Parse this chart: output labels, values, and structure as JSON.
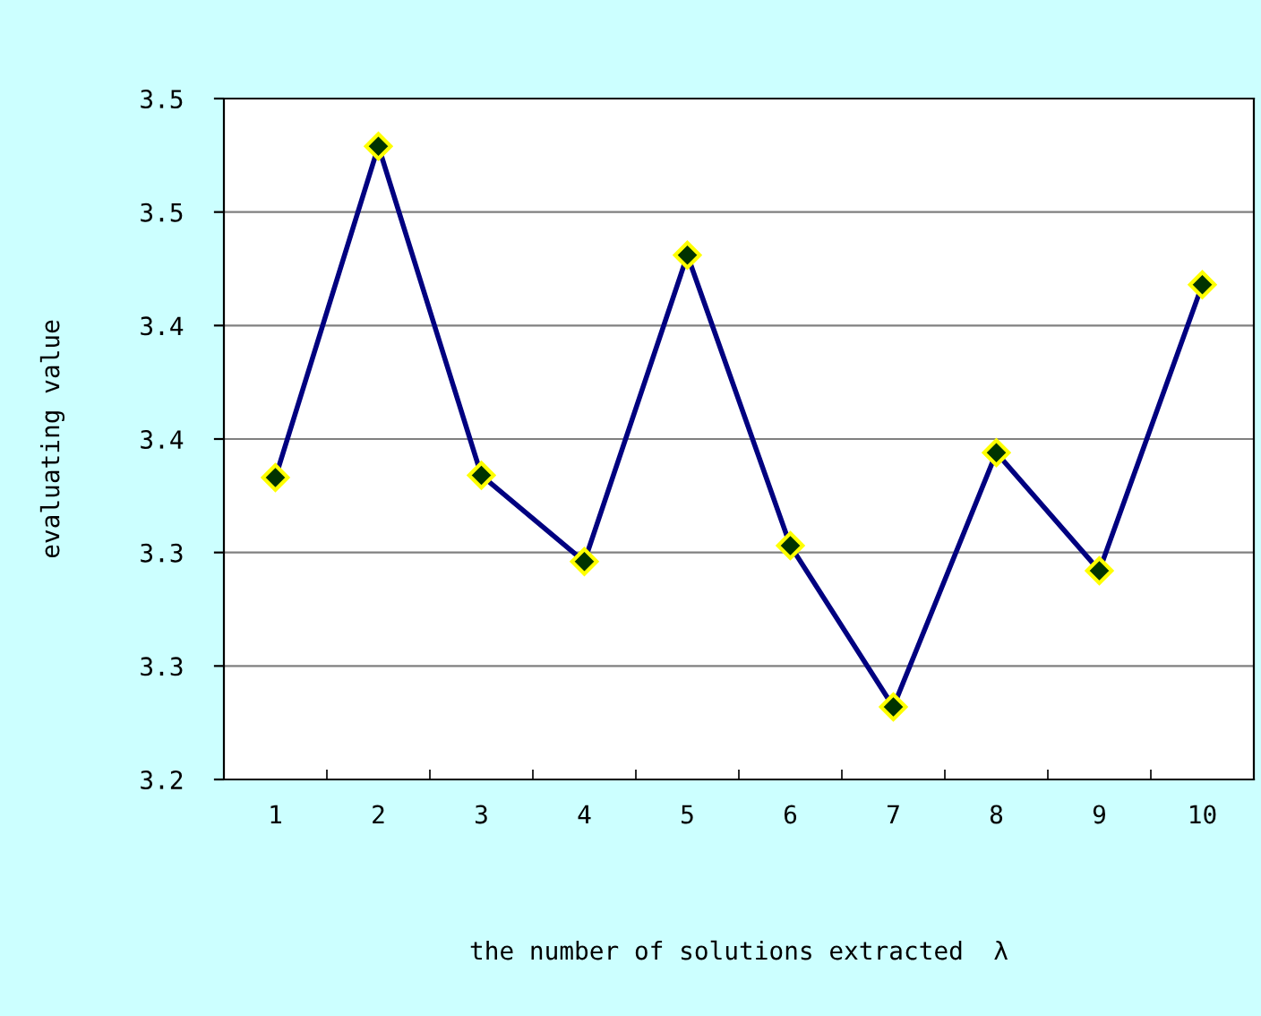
{
  "chart_data": {
    "type": "line",
    "xlabel": "the number of solutions extracted  λ",
    "ylabel": "evaluating value",
    "categories": [
      "1",
      "2",
      "3",
      "4",
      "5",
      "6",
      "7",
      "8",
      "9",
      "10"
    ],
    "series": [
      {
        "color": "#000080",
        "values": [
          3.333,
          3.479,
          3.334,
          3.296,
          3.431,
          3.303,
          3.232,
          3.344,
          3.292,
          3.418
        ]
      }
    ],
    "ylim": [
      3.2,
      3.5
    ],
    "yticks": [
      {
        "value": 3.2,
        "label": "3.2"
      },
      {
        "value": 3.25,
        "label": "3.3"
      },
      {
        "value": 3.3,
        "label": "3.3"
      },
      {
        "value": 3.35,
        "label": "3.4"
      },
      {
        "value": 3.4,
        "label": "3.4"
      },
      {
        "value": 3.45,
        "label": "3.5"
      },
      {
        "value": 3.5,
        "label": "3.5"
      }
    ],
    "grid": "y",
    "marker": "diamond",
    "line_style": "solid",
    "legend": false
  }
}
